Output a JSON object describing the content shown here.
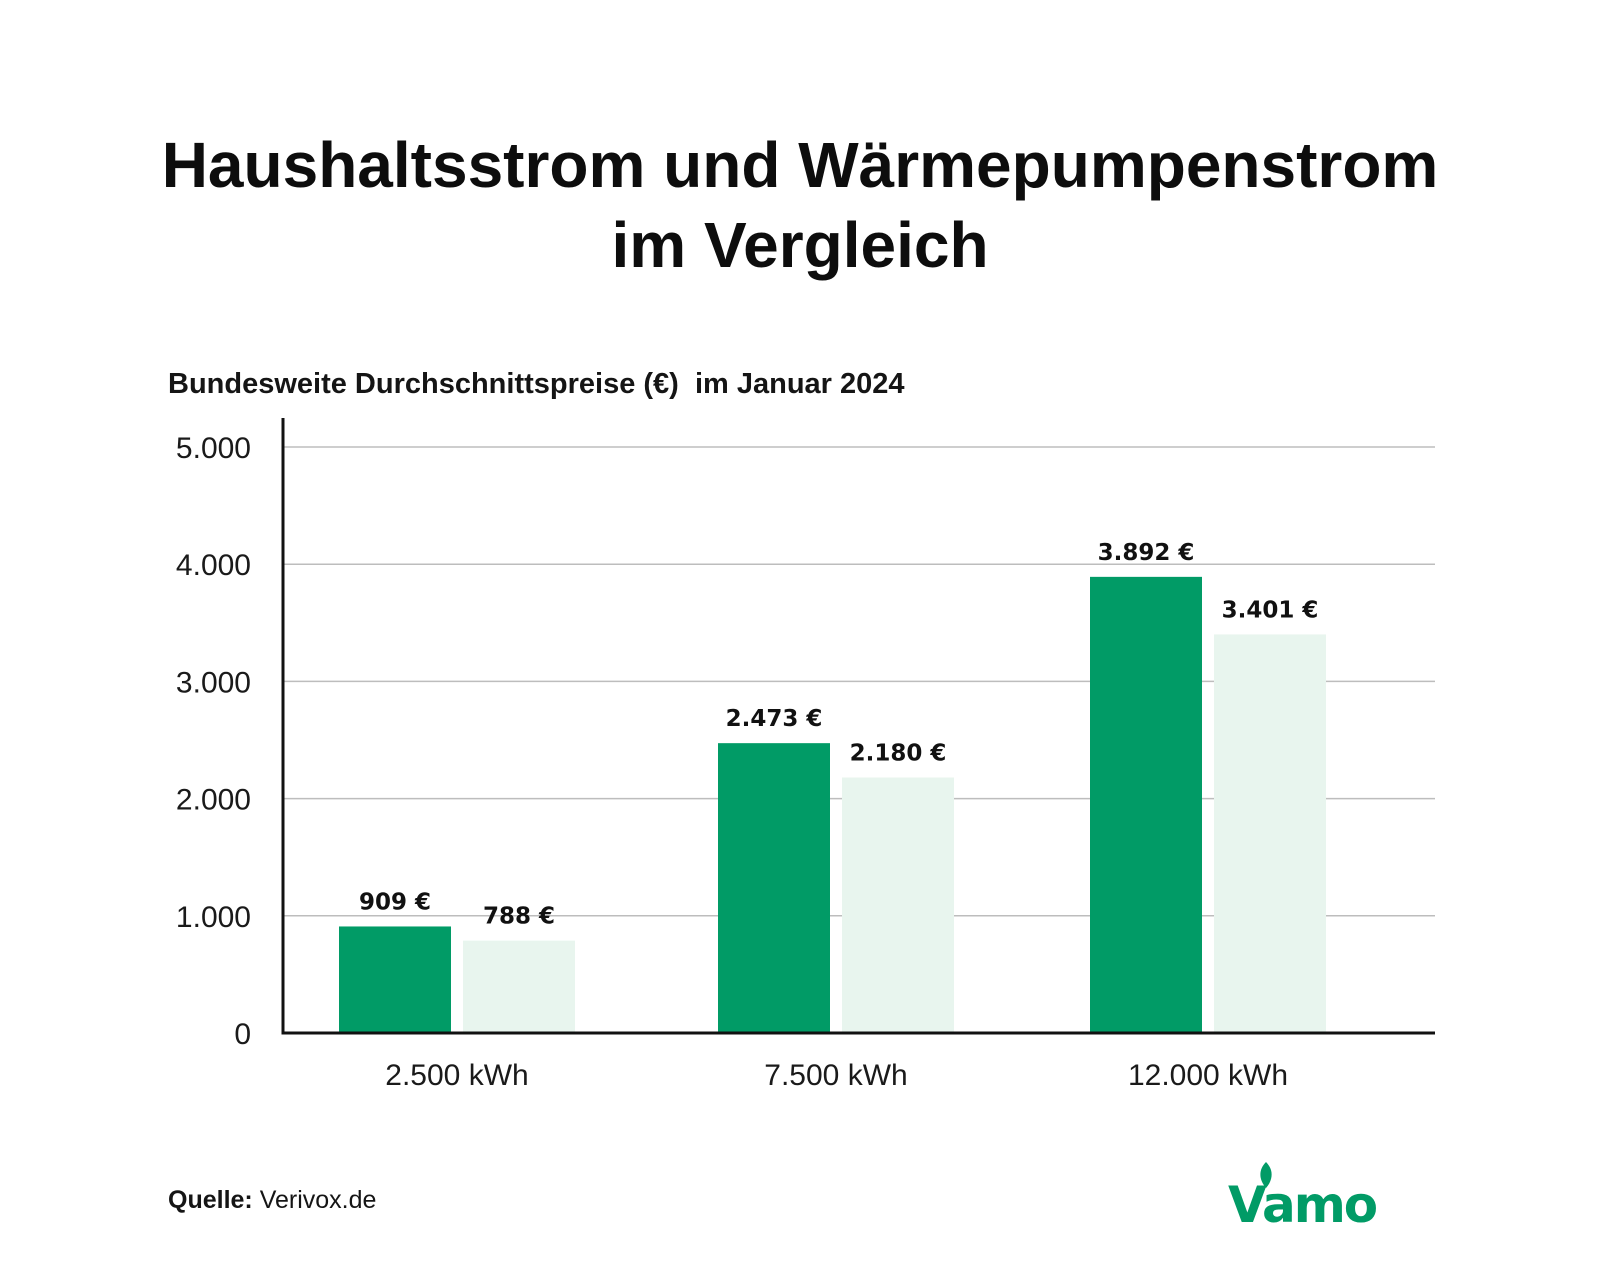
{
  "title_lines": [
    "Haushaltsstrom und Wärmepumpenstrom",
    "im Vergleich"
  ],
  "subtitle": "Bundesweite Durchschnittspreise (€)  im Januar 2024",
  "source": {
    "label": "Quelle:",
    "value": "Verivox.de"
  },
  "logo_text": "Vamo",
  "colors": {
    "series_dark": "#019b66",
    "series_light": "#e8f5ee",
    "gridline": "#bdbdbd",
    "axis": "#111111",
    "logo": "#019b66"
  },
  "chart_data": {
    "type": "bar",
    "title": "",
    "xlabel": "",
    "ylabel": "",
    "categories": [
      "2.500 kWh",
      "7.500 kWh",
      "12.000 kWh"
    ],
    "ylim": [
      0,
      5000
    ],
    "yticks": [
      0,
      1000,
      2000,
      3000,
      4000,
      5000
    ],
    "ytick_labels": [
      "0",
      "1.000",
      "2.000",
      "3.000",
      "4.000",
      "5.000"
    ],
    "grid": true,
    "legend": "none",
    "series": [
      {
        "values": [
          909,
          2473,
          3892
        ],
        "value_labels": [
          "909 €",
          "2.473 €",
          "3.892 €"
        ],
        "color": "#019b66"
      },
      {
        "values": [
          788,
          2180,
          3401
        ],
        "value_labels": [
          "788 €",
          "2.180 €",
          "3.401 €"
        ],
        "color": "#e8f5ee"
      }
    ]
  }
}
